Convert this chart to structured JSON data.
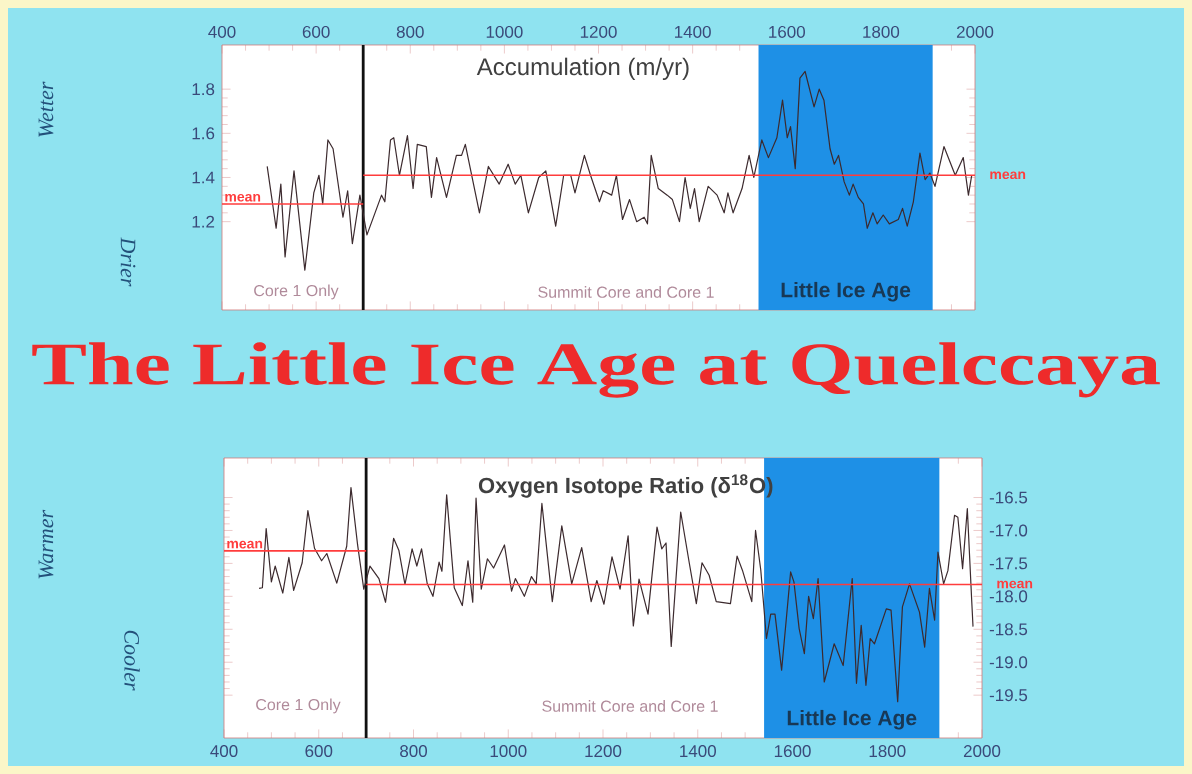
{
  "chart_data": [
    {
      "type": "line",
      "title": "Accumulation (m/yr)",
      "xlim": [
        400,
        2000
      ],
      "xticks": [
        400,
        600,
        800,
        1000,
        1200,
        1400,
        1600,
        1800,
        2000
      ],
      "ylim": [
        0.8,
        2.0
      ],
      "yticks": [
        1.2,
        1.4,
        1.6,
        1.8
      ],
      "series": [
        {
          "color": "#3c2a2e",
          "x": [
            496,
            515,
            525,
            534,
            553,
            576,
            595,
            606,
            614,
            625,
            636,
            657,
            667,
            677,
            693,
            708,
            739,
            746,
            758,
            765,
            777,
            794,
            806,
            815,
            834,
            845,
            856,
            877,
            898,
            909,
            917,
            947,
            966,
            989,
            1008,
            1023,
            1035,
            1051,
            1073,
            1088,
            1109,
            1126,
            1141,
            1150,
            1170,
            1183,
            1202,
            1210,
            1228,
            1238,
            1251,
            1266,
            1281,
            1297,
            1304,
            1312,
            1327,
            1346,
            1357,
            1372,
            1384,
            1395,
            1404,
            1414,
            1433,
            1452,
            1467,
            1475,
            1486,
            1505,
            1520,
            1530,
            1547,
            1561,
            1579,
            1591,
            1601,
            1608,
            1618,
            1628,
            1639,
            1658,
            1669,
            1679,
            1692,
            1701,
            1710,
            1722,
            1733,
            1741,
            1752,
            1763,
            1771,
            1783,
            1792,
            1805,
            1818,
            1837,
            1846,
            1856,
            1869,
            1883,
            1894,
            1904,
            1915,
            1934,
            1958,
            1975,
            1986,
            1993
          ],
          "values": [
            1.45,
            1.17,
            1.37,
            1.04,
            1.43,
            0.98,
            1.33,
            1.41,
            1.28,
            1.57,
            1.53,
            1.22,
            1.34,
            1.1,
            1.32,
            1.14,
            1.32,
            1.29,
            1.57,
            1.58,
            1.41,
            1.59,
            1.35,
            1.55,
            1.54,
            1.31,
            1.49,
            1.31,
            1.5,
            1.5,
            1.55,
            1.24,
            1.45,
            1.37,
            1.46,
            1.37,
            1.41,
            1.24,
            1.4,
            1.43,
            1.18,
            1.41,
            1.41,
            1.33,
            1.5,
            1.41,
            1.29,
            1.34,
            1.32,
            1.41,
            1.21,
            1.3,
            1.2,
            1.22,
            1.19,
            1.5,
            1.35,
            1.32,
            1.3,
            1.2,
            1.4,
            1.26,
            1.35,
            1.2,
            1.36,
            1.32,
            1.24,
            1.33,
            1.24,
            1.35,
            1.5,
            1.4,
            1.57,
            1.49,
            1.58,
            1.75,
            1.58,
            1.63,
            1.44,
            1.85,
            1.88,
            1.72,
            1.8,
            1.75,
            1.53,
            1.46,
            1.5,
            1.38,
            1.32,
            1.37,
            1.31,
            1.28,
            1.17,
            1.24,
            1.19,
            1.23,
            1.19,
            1.21,
            1.26,
            1.18,
            1.29,
            1.51,
            1.39,
            1.42,
            1.36,
            1.54,
            1.41,
            1.49,
            1.32,
            1.41
          ]
        },
        {
          "name": "mean",
          "type": "line",
          "color": "#ff3c3c",
          "x": [
            400,
            700
          ],
          "values": [
            1.28,
            1.28
          ]
        },
        {
          "name": "mean",
          "type": "line",
          "color": "#ff3c3c",
          "x": [
            700,
            2000
          ],
          "values": [
            1.41,
            1.41
          ]
        }
      ],
      "ref_lines": [
        {
          "axis": "x",
          "value": 700,
          "color": "#111111"
        }
      ],
      "bands": [
        {
          "axis": "x",
          "from": 1540,
          "to": 1910,
          "label": "Little Ice Age",
          "color": "#1e90e6"
        }
      ],
      "annotations": [
        "The Little Ice Age at Quelccaya",
        "Wetter",
        "Drier",
        "Core 1 Only",
        "Summit Core and Core 1"
      ]
    },
    {
      "type": "line",
      "title": "Oxygen Isotope Ratio (δ$^{18}$O)",
      "xlim": [
        400,
        2000
      ],
      "xticks": [
        400,
        600,
        800,
        1000,
        1200,
        1400,
        1600,
        1800,
        2000
      ],
      "ylim": [
        -20.15,
        -15.9
      ],
      "yticks": [
        -19.5,
        {
          "value": -19,
          "label": "-19.0"
        },
        -18.5,
        {
          "value": -18,
          "label": "-18.0"
        },
        -17.5,
        {
          "value": -17,
          "label": "-17.0"
        },
        -16.5
      ],
      "series": [
        {
          "color": "#3c2a2e",
          "x": [
            474,
            481,
            489,
            500,
            508,
            524,
            537,
            547,
            565,
            577,
            591,
            606,
            617,
            638,
            659,
            668,
            682,
            695,
            708,
            727,
            741,
            758,
            769,
            782,
            797,
            807,
            817,
            829,
            841,
            854,
            860,
            870,
            886,
            903,
            915,
            925,
            932,
            943,
            956,
            969,
            992,
            1007,
            1015,
            1034,
            1049,
            1059,
            1071,
            1093,
            1113,
            1134,
            1155,
            1175,
            1187,
            1202,
            1219,
            1236,
            1253,
            1264,
            1276,
            1295,
            1314,
            1324,
            1333,
            1344,
            1364,
            1382,
            1397,
            1409,
            1424,
            1439,
            1469,
            1483,
            1495,
            1514,
            1522,
            1533,
            1545,
            1554,
            1563,
            1577,
            1596,
            1603,
            1614,
            1625,
            1634,
            1644,
            1654,
            1667,
            1688,
            1707,
            1726,
            1735,
            1745,
            1755,
            1764,
            1773,
            1798,
            1808,
            1822,
            1832,
            1847,
            1868,
            1879,
            1889,
            1900,
            1907,
            1919,
            1928,
            1942,
            1949,
            1959,
            1969,
            1978,
            1981
          ],
          "values": [
            -17.88,
            -17.87,
            -16.97,
            -17.78,
            -17.54,
            -17.95,
            -17.41,
            -17.91,
            -17.49,
            -16.7,
            -17.27,
            -17.46,
            -17.35,
            -17.8,
            -17.24,
            -16.35,
            -17.22,
            -17.89,
            -17.54,
            -17.73,
            -18.09,
            -17.12,
            -17.3,
            -17.82,
            -17.28,
            -17.54,
            -17.28,
            -17.81,
            -18.0,
            -17.48,
            -17.62,
            -16.46,
            -17.87,
            -18.14,
            -17.46,
            -18.09,
            -16.51,
            -17.89,
            -17.43,
            -17.57,
            -17.22,
            -17.92,
            -17.73,
            -18.0,
            -17.7,
            -17.81,
            -16.59,
            -18.08,
            -16.93,
            -17.81,
            -17.26,
            -18.08,
            -17.76,
            -18.12,
            -17.4,
            -17.89,
            -17.08,
            -18.45,
            -17.74,
            -18.27,
            -16.95,
            -17.28,
            -17.19,
            -18.76,
            -16.72,
            -17.49,
            -18.11,
            -17.49,
            -17.68,
            -18.08,
            -18.11,
            -17.39,
            -17.62,
            -18.08,
            -17.0,
            -17.6,
            -18.64,
            -18.27,
            -18.27,
            -19.12,
            -17.63,
            -17.78,
            -18.49,
            -18.87,
            -18.0,
            -18.34,
            -17.73,
            -19.3,
            -18.72,
            -19.05,
            -17.73,
            -19.32,
            -18.44,
            -19.35,
            -18.64,
            -18.72,
            -18.19,
            -18.21,
            -19.6,
            -18.16,
            -17.81,
            -18.24,
            -18.77,
            -17.88,
            -18.36,
            -17.33,
            -17.81,
            -17.61,
            -16.77,
            -16.8,
            -17.58,
            -16.67,
            -18.03,
            -18.46
          ]
        },
        {
          "name": "mean",
          "type": "line",
          "color": "#ff3c3c",
          "x": [
            400,
            700
          ],
          "values": [
            -17.31,
            -17.31
          ]
        },
        {
          "name": "mean",
          "type": "line",
          "color": "#ff3c3c",
          "x": [
            700,
            2000
          ],
          "values": [
            -17.82,
            -17.82
          ]
        }
      ],
      "ref_lines": [
        {
          "axis": "x",
          "value": 700,
          "color": "#111111"
        }
      ],
      "bands": [
        {
          "axis": "x",
          "from": 1540,
          "to": 1910,
          "label": "Little Ice Age",
          "color": "#1e90e6"
        }
      ],
      "annotations": [
        "Warmer",
        "Cooler",
        "Core 1 Only",
        "Summit Core and Core 1"
      ]
    }
  ]
}
